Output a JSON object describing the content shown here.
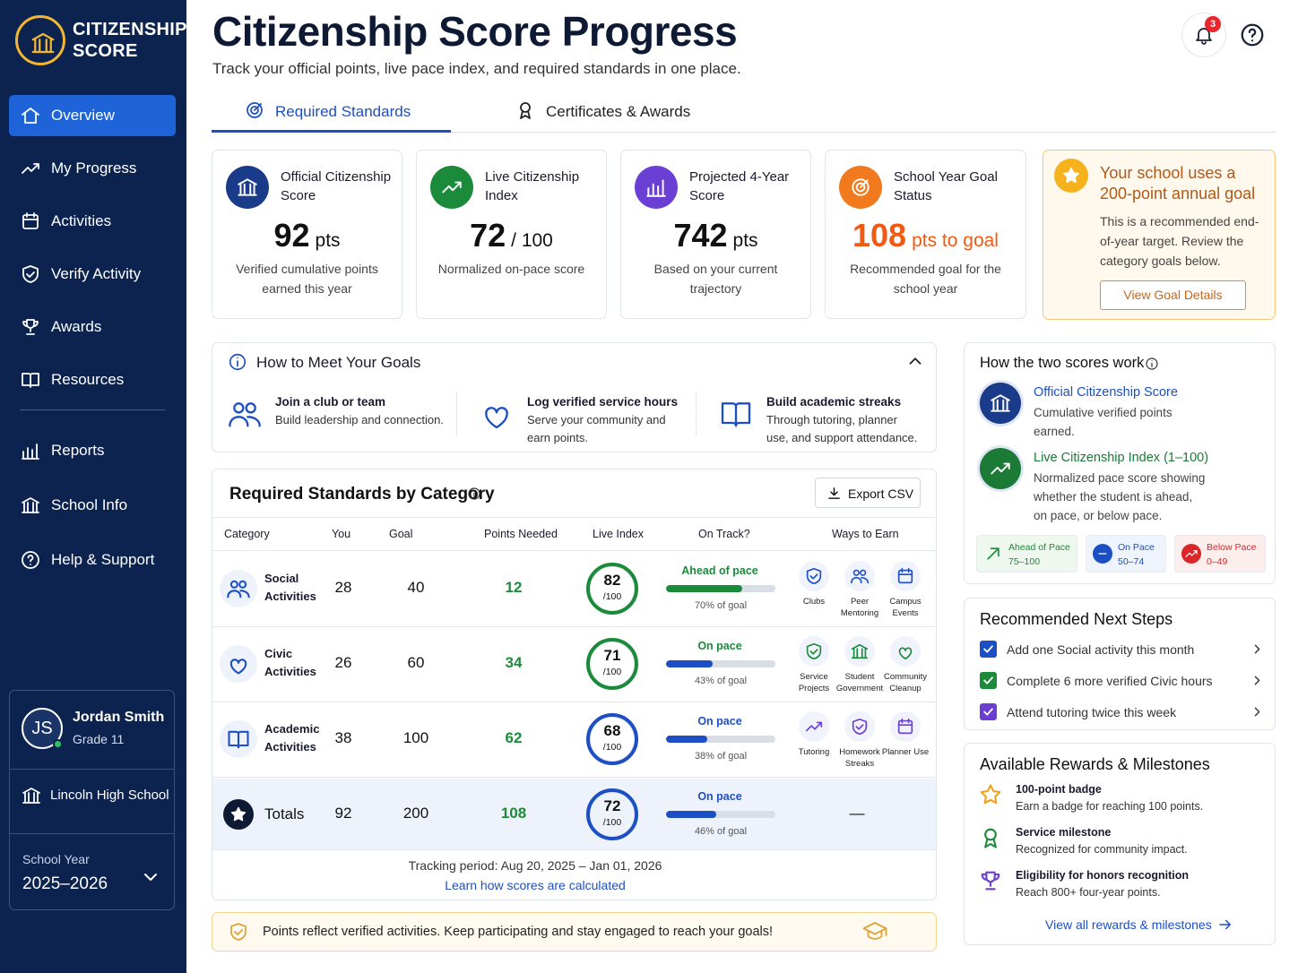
{
  "sidebar": {
    "brand": [
      "CITIZENSHIP",
      "SCORE"
    ],
    "nav": [
      "Overview",
      "My Progress",
      "Activities",
      "Verify Activity",
      "Awards",
      "Resources",
      "Reports",
      "School Info",
      "Help & Support"
    ],
    "user": {
      "initials": "JS",
      "name": "Jordan Smith",
      "grade": "Grade 11"
    },
    "school": "Lincoln High School",
    "year_label": "School Year",
    "year": "2025–2026"
  },
  "header": {
    "title": "Citizenship Score Progress",
    "subtitle": "Track your official points, live pace index, and required standards in one place.",
    "notifications": 3
  },
  "tabs": [
    "Required Standards",
    "Certificates & Awards"
  ],
  "stats": [
    {
      "label": "Official Citizenship Score",
      "value": 92,
      "unit": "pts",
      "note": "Verified cumulative points earned this year"
    },
    {
      "label": "Live Citizenship Index",
      "value": 72,
      "unit": "/ 100",
      "note": "Normalized on-pace score"
    },
    {
      "label": "Projected 4-Year Score",
      "value": 742,
      "unit": "pts",
      "note": "Based on your current trajectory"
    },
    {
      "label": "School Year Goal Status",
      "value": 108,
      "unit": "pts to goal",
      "note": "Recommended goal for the school year"
    }
  ],
  "goal_card": {
    "title": "Your school uses a 200-point annual goal",
    "text": "This is a recommended end-of-year target. Review the category goals below.",
    "button": "View Goal Details"
  },
  "how_to": {
    "title": "How to Meet Your Goals",
    "items": [
      {
        "title": "Join a club or team",
        "text": "Build leadership and connection."
      },
      {
        "title": "Log verified service hours",
        "text": "Serve your community and earn points."
      },
      {
        "title": "Build academic streaks",
        "text": "Through tutoring, planner use, and support attendance."
      }
    ]
  },
  "table": {
    "title": "Required Standards by Category",
    "export": "Export CSV",
    "columns": [
      "Category",
      "You",
      "Goal",
      "Points Needed",
      "Live Index",
      "On Track?",
      "Ways to Earn"
    ],
    "rows": [
      {
        "category": "Social Activities",
        "you": 28,
        "goal": 40,
        "needed": 12,
        "index": 82,
        "index_max": "/100",
        "status": "Ahead of pace",
        "pct": 70,
        "pct_label": "70% of goal",
        "ways": [
          "Clubs",
          "Peer Mentoring",
          "Campus Events"
        ]
      },
      {
        "category": "Civic Activities",
        "you": 26,
        "goal": 60,
        "needed": 34,
        "index": 71,
        "index_max": "/100",
        "status": "On pace",
        "pct": 43,
        "pct_label": "43% of goal",
        "ways": [
          "Service Projects",
          "Student Government",
          "Community Cleanup"
        ]
      },
      {
        "category": "Academic Activities",
        "you": 38,
        "goal": 100,
        "needed": 62,
        "index": 68,
        "index_max": "/100",
        "status": "On pace",
        "pct": 38,
        "pct_label": "38% of goal",
        "ways": [
          "Tutoring",
          "Homework Streaks",
          "Planner Use"
        ]
      }
    ],
    "totals": {
      "category": "Totals",
      "you": 92,
      "goal": 200,
      "needed": 108,
      "index": 72,
      "index_max": "/100",
      "status": "On pace",
      "pct": 46,
      "pct_label": "46% of goal",
      "ways": "—"
    },
    "period": "Tracking period: Aug 20, 2025 – Jan 01, 2026",
    "link": "Learn how scores are calculated"
  },
  "banner": "Points reflect verified activities. Keep participating and stay engaged to reach your goals!",
  "explainer": {
    "title": "How the two scores work",
    "items": [
      {
        "title": "Official Citizenship Score",
        "text": "Cumulative verified points earned."
      },
      {
        "title": "Live Citizenship Index (1–100)",
        "text": "Normalized pace score showing whether the student is ahead, on pace, or below pace."
      }
    ],
    "legend": [
      {
        "name": "Ahead of Pace",
        "range": "75–100"
      },
      {
        "name": "On Pace",
        "range": "50–74"
      },
      {
        "name": "Below Pace",
        "range": "0–49"
      }
    ]
  },
  "next_steps": {
    "title": "Recommended Next Steps",
    "items": [
      "Add one Social activity this month",
      "Complete 6 more verified Civic hours",
      "Attend tutoring twice this week"
    ]
  },
  "rewards": {
    "title": "Available Rewards & Milestones",
    "items": [
      {
        "title": "100-point badge",
        "text": "Earn a badge for reaching 100 points."
      },
      {
        "title": "Service milestone",
        "text": "Recognized for community impact."
      },
      {
        "title": "Eligibility for honors recognition",
        "text": "Reach 800+ four-year points."
      }
    ],
    "link": "View all rewards & milestones"
  }
}
